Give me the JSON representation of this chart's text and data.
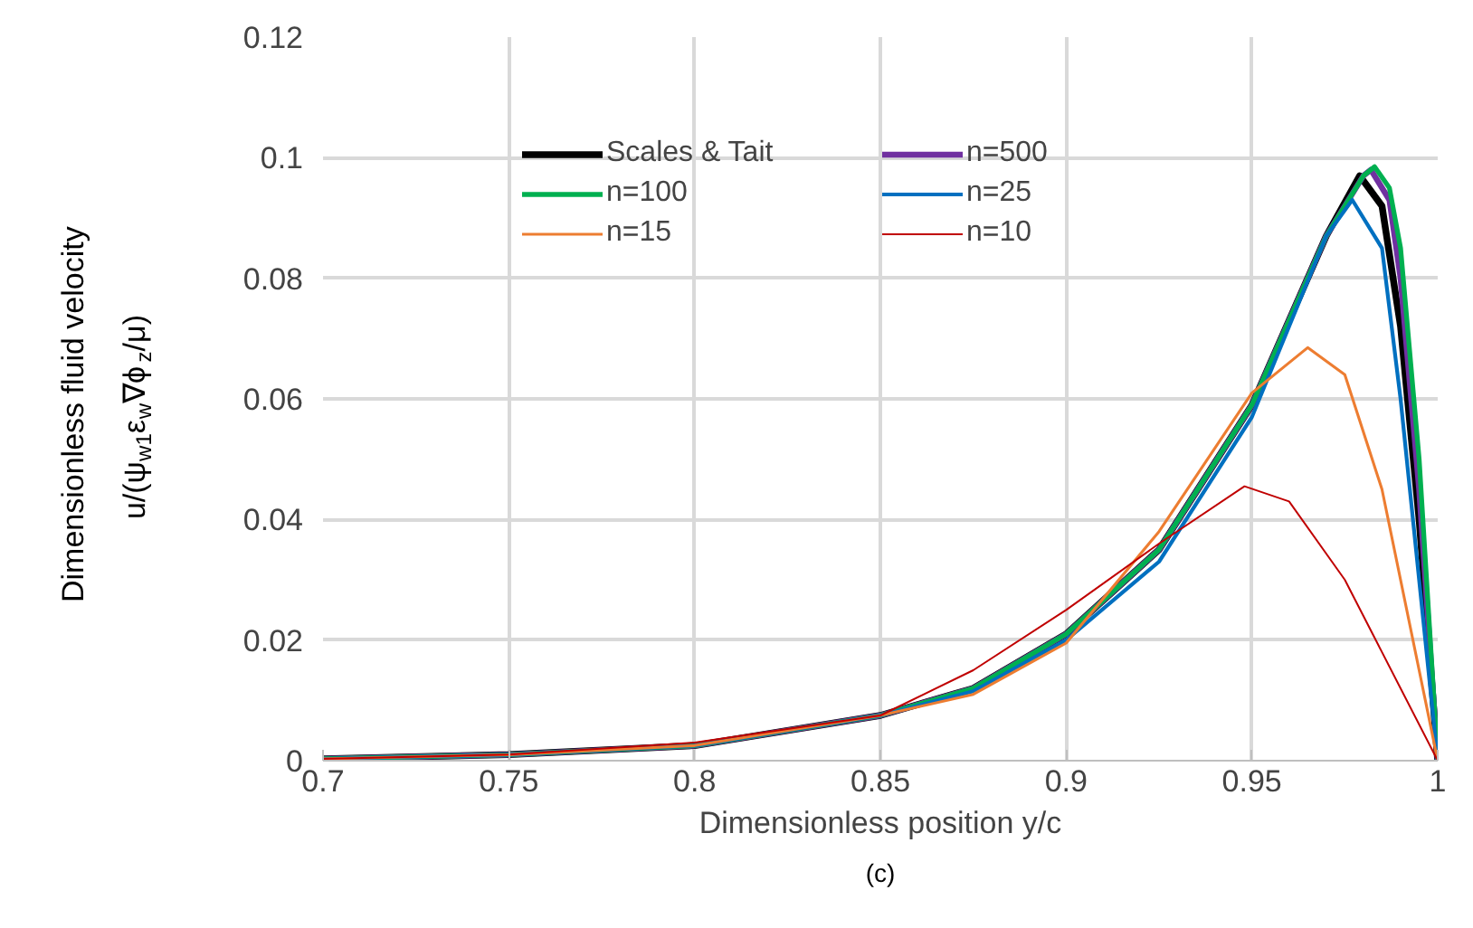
{
  "chart_data": {
    "type": "line",
    "xlabel": "Dimensionless position y/c",
    "ylabel": "Dimensionless fluid velocity\nu/(ψ$_{w1}$ε$_{w}$∇ϕ$_{z}$/μ)",
    "annotations": [
      "(c)"
    ],
    "xlim": [
      0.7,
      1.0
    ],
    "xticks": [
      0.7,
      0.75,
      0.8,
      0.85,
      0.9,
      0.95,
      1
    ],
    "ylim": [
      0,
      0.12
    ],
    "yticks": [
      0,
      0.02,
      0.04,
      0.06,
      0.08,
      0.1,
      0.12
    ],
    "grid": true,
    "legend": "top",
    "line_style": "solid",
    "marker": "none",
    "series": [
      {
        "name": "Scales & Tait",
        "color": "#000000",
        "x": [
          0.7,
          0.75,
          0.8,
          0.85,
          0.875,
          0.9,
          0.925,
          0.95,
          0.96,
          0.97,
          0.979,
          0.985,
          0.99,
          0.995,
          1.0
        ],
        "values": [
          0.0003,
          0.001,
          0.0025,
          0.0075,
          0.012,
          0.021,
          0.035,
          0.059,
          0.073,
          0.087,
          0.097,
          0.092,
          0.072,
          0.04,
          0
        ]
      },
      {
        "name": "n=500",
        "color": "#7030a0",
        "x": [
          0.7,
          0.75,
          0.8,
          0.85,
          0.875,
          0.9,
          0.925,
          0.95,
          0.96,
          0.97,
          0.98,
          0.982,
          0.987,
          0.99,
          0.995,
          1.0
        ],
        "values": [
          0.0003,
          0.001,
          0.0025,
          0.0075,
          0.012,
          0.021,
          0.035,
          0.059,
          0.073,
          0.087,
          0.097,
          0.098,
          0.093,
          0.08,
          0.045,
          0
        ]
      },
      {
        "name": "n=100",
        "color": "#00b050",
        "x": [
          0.7,
          0.75,
          0.8,
          0.85,
          0.875,
          0.9,
          0.925,
          0.95,
          0.96,
          0.97,
          0.98,
          0.983,
          0.987,
          0.99,
          0.995,
          1.0
        ],
        "values": [
          0.0003,
          0.001,
          0.0025,
          0.0075,
          0.012,
          0.021,
          0.035,
          0.059,
          0.073,
          0.087,
          0.097,
          0.0985,
          0.095,
          0.085,
          0.05,
          0
        ]
      },
      {
        "name": "n=25",
        "color": "#0070c0",
        "x": [
          0.7,
          0.75,
          0.8,
          0.85,
          0.875,
          0.9,
          0.925,
          0.95,
          0.96,
          0.97,
          0.977,
          0.985,
          0.99,
          0.995,
          1.0
        ],
        "values": [
          0.0003,
          0.001,
          0.0025,
          0.0075,
          0.0115,
          0.02,
          0.033,
          0.057,
          0.072,
          0.087,
          0.093,
          0.085,
          0.06,
          0.03,
          0
        ]
      },
      {
        "name": "n=15",
        "color": "#ed7d31",
        "x": [
          0.7,
          0.75,
          0.8,
          0.85,
          0.875,
          0.9,
          0.925,
          0.95,
          0.965,
          0.975,
          0.985,
          0.995,
          1.0
        ],
        "values": [
          0.0003,
          0.001,
          0.0025,
          0.0075,
          0.011,
          0.0195,
          0.038,
          0.061,
          0.0685,
          0.064,
          0.045,
          0.015,
          0
        ]
      },
      {
        "name": "n=10",
        "color": "#c00000",
        "x": [
          0.7,
          0.75,
          0.8,
          0.85,
          0.875,
          0.9,
          0.925,
          0.948,
          0.96,
          0.975,
          0.99,
          1.0
        ],
        "values": [
          0.0003,
          0.001,
          0.003,
          0.0075,
          0.015,
          0.025,
          0.036,
          0.0455,
          0.043,
          0.03,
          0.012,
          0
        ]
      }
    ]
  }
}
